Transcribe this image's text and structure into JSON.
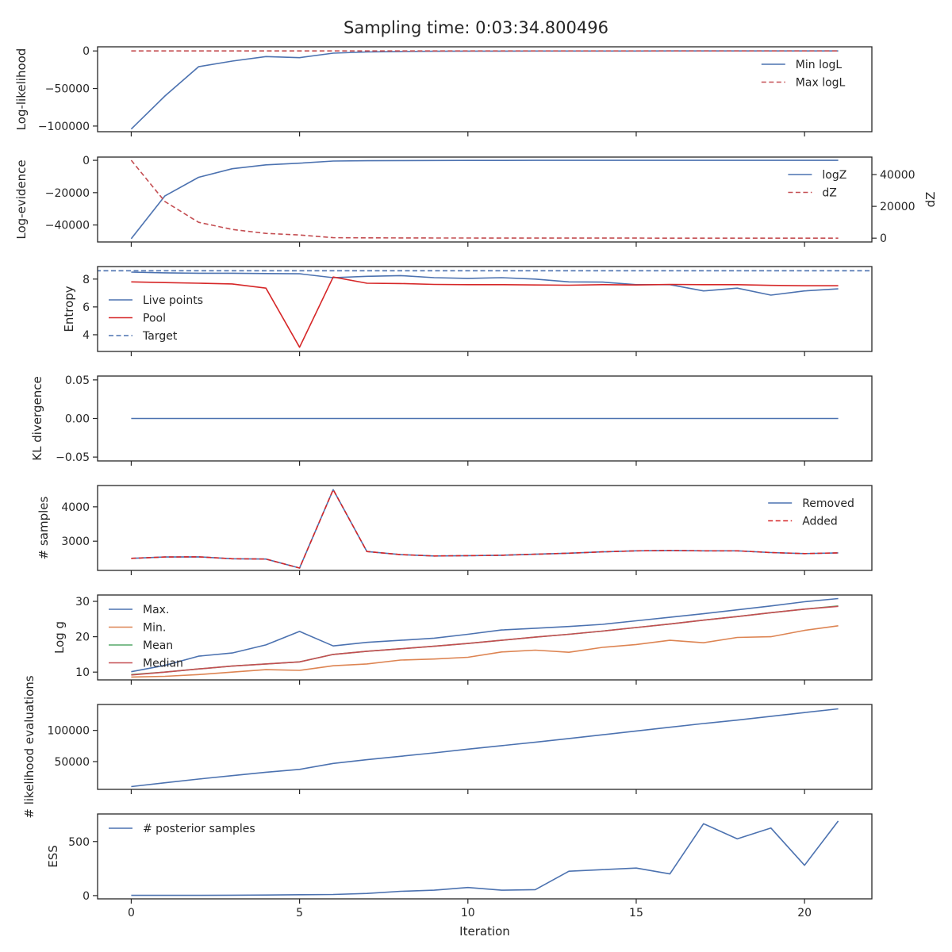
{
  "title": "Sampling time: 0:03:34.800496",
  "chart_data": [
    {
      "type": "line",
      "ylabel": "Log-likelihood",
      "ylim": [
        -107500,
        5500
      ],
      "yticks": [
        0,
        -50000,
        -100000
      ],
      "ytick_labels": [
        "0",
        "−50000",
        "−100000"
      ],
      "legend": "top-right",
      "series": [
        {
          "name": "Min logL",
          "color": "#4c72b0",
          "dash": "solid",
          "x": [
            0,
            1,
            2,
            3,
            4,
            5,
            6,
            7,
            8,
            9,
            10,
            11,
            12,
            13,
            14,
            15,
            16,
            17,
            18,
            19,
            20,
            21
          ],
          "y": [
            -104000,
            -60000,
            -21000,
            -13500,
            -7500,
            -9000,
            -3000,
            -1400,
            -700,
            -400,
            -250,
            -150,
            -100,
            -80,
            -60,
            -50,
            -40,
            -30,
            -20,
            -15,
            -10,
            -8
          ]
        },
        {
          "name": "Max logL",
          "color": "#c44e52",
          "dash": "dashed",
          "x": [
            0,
            1,
            2,
            3,
            4,
            5,
            6,
            7,
            8,
            9,
            10,
            11,
            12,
            13,
            14,
            15,
            16,
            17,
            18,
            19,
            20,
            21
          ],
          "y": [
            0,
            0,
            0,
            0,
            0,
            0,
            0,
            0,
            0,
            0,
            0,
            0,
            0,
            0,
            0,
            0,
            0,
            0,
            0,
            0,
            0,
            0
          ]
        }
      ]
    },
    {
      "type": "line",
      "ylabel": "Log-evidence",
      "ylabel_right": "dZ",
      "ylim": [
        -50500,
        2000
      ],
      "yticks": [
        0,
        -20000,
        -40000
      ],
      "ytick_labels": [
        "0",
        "−20000",
        "−40000"
      ],
      "ylim_right": [
        -2400,
        51000
      ],
      "yticks_right": [
        0,
        20000,
        40000
      ],
      "ytick_labels_right": [
        "0",
        "20000",
        "40000"
      ],
      "legend": "top-right",
      "series": [
        {
          "name": "logZ",
          "color": "#4c72b0",
          "dash": "solid",
          "axis": "left",
          "x": [
            0,
            1,
            2,
            3,
            4,
            5,
            6,
            7,
            8,
            9,
            10,
            11,
            12,
            13,
            14,
            15,
            16,
            17,
            18,
            19,
            20,
            21
          ],
          "y": [
            -48500,
            -22000,
            -10500,
            -5200,
            -2800,
            -1800,
            -450,
            -250,
            -150,
            -100,
            -60,
            -40,
            -30,
            -20,
            -15,
            -12,
            -10,
            -8,
            -6,
            -5,
            -4,
            -3
          ]
        },
        {
          "name": "dZ",
          "color": "#c44e52",
          "dash": "dashed",
          "axis": "right",
          "x": [
            0,
            1,
            2,
            3,
            4,
            5,
            6,
            7,
            8,
            9,
            10,
            11,
            12,
            13,
            14,
            15,
            16,
            17,
            18,
            19,
            20,
            21
          ],
          "y": [
            49000,
            23000,
            10000,
            5500,
            3000,
            2000,
            300,
            200,
            150,
            100,
            80,
            60,
            50,
            40,
            30,
            25,
            20,
            15,
            12,
            10,
            8,
            6
          ]
        }
      ]
    },
    {
      "type": "line",
      "ylabel": "Entropy",
      "ylim": [
        2.8,
        8.9
      ],
      "yticks": [
        8,
        6,
        4
      ],
      "ytick_labels": [
        "8",
        "6",
        "4"
      ],
      "legend": "bottom-left",
      "series": [
        {
          "name": "Live points",
          "color": "#4c72b0",
          "dash": "solid",
          "x": [
            0,
            1,
            2,
            3,
            4,
            5,
            6,
            7,
            8,
            9,
            10,
            11,
            12,
            13,
            14,
            15,
            16,
            17,
            18,
            19,
            20,
            21
          ],
          "y": [
            8.5,
            8.45,
            8.42,
            8.42,
            8.4,
            8.38,
            8.1,
            8.2,
            8.25,
            8.1,
            8.05,
            8.1,
            8.0,
            7.8,
            7.78,
            7.6,
            7.6,
            7.15,
            7.35,
            6.85,
            7.15,
            7.3
          ]
        },
        {
          "name": "Pool",
          "color": "#d62728",
          "dash": "solid",
          "x": [
            0,
            1,
            2,
            3,
            4,
            5,
            6,
            7,
            8,
            9,
            10,
            11,
            12,
            13,
            14,
            15,
            16,
            17,
            18,
            19,
            20,
            21
          ],
          "y": [
            7.8,
            7.75,
            7.7,
            7.65,
            7.35,
            3.1,
            8.15,
            7.7,
            7.68,
            7.62,
            7.6,
            7.6,
            7.58,
            7.56,
            7.6,
            7.58,
            7.62,
            7.6,
            7.6,
            7.55,
            7.52,
            7.52
          ]
        },
        {
          "name": "Target",
          "color": "#4c72b0",
          "dash": "dashed",
          "full_width": true,
          "x": [
            0,
            21
          ],
          "y": [
            8.6,
            8.6
          ]
        }
      ]
    },
    {
      "type": "line",
      "ylabel": "KL divergence",
      "ylim": [
        -0.055,
        0.055
      ],
      "yticks": [
        0.05,
        0.0,
        -0.05
      ],
      "ytick_labels": [
        "0.05",
        "0.00",
        "−0.05"
      ],
      "series": [
        {
          "name": "",
          "color": "#4c72b0",
          "dash": "solid",
          "x": [
            0,
            1,
            2,
            3,
            4,
            5,
            6,
            7,
            8,
            9,
            10,
            11,
            12,
            13,
            14,
            15,
            16,
            17,
            18,
            19,
            20,
            21
          ],
          "y": [
            0,
            0,
            0,
            0,
            0,
            0,
            0,
            0,
            0,
            0,
            0,
            0,
            0,
            0,
            0,
            0,
            0,
            0,
            0,
            0,
            0,
            0
          ]
        }
      ]
    },
    {
      "type": "line",
      "ylabel": "# samples",
      "ylim": [
        2150,
        4620
      ],
      "yticks": [
        4000,
        3000
      ],
      "ytick_labels": [
        "4000",
        "3000"
      ],
      "legend": "top-right",
      "series": [
        {
          "name": "Removed",
          "color": "#4c72b0",
          "dash": "solid",
          "x": [
            0,
            1,
            2,
            3,
            4,
            5,
            6,
            7,
            8,
            9,
            10,
            11,
            12,
            13,
            14,
            15,
            16,
            17,
            18,
            19,
            20,
            21
          ],
          "y": [
            2500,
            2540,
            2545,
            2490,
            2480,
            2220,
            4500,
            2700,
            2610,
            2570,
            2580,
            2590,
            2620,
            2650,
            2690,
            2720,
            2730,
            2720,
            2720,
            2670,
            2640,
            2660
          ]
        },
        {
          "name": "Added",
          "color": "#d62728",
          "dash": "dashed",
          "x": [
            0,
            1,
            2,
            3,
            4,
            5,
            6,
            7,
            8,
            9,
            10,
            11,
            12,
            13,
            14,
            15,
            16,
            17,
            18,
            19,
            20,
            21
          ],
          "y": [
            2500,
            2540,
            2545,
            2490,
            2480,
            2220,
            4500,
            2700,
            2610,
            2570,
            2580,
            2590,
            2620,
            2650,
            2690,
            2720,
            2730,
            2720,
            2720,
            2670,
            2640,
            2660
          ]
        }
      ]
    },
    {
      "type": "line",
      "ylabel": "Log g",
      "ylim": [
        7.8,
        31.8
      ],
      "yticks": [
        30,
        20,
        10
      ],
      "ytick_labels": [
        "30",
        "20",
        "10"
      ],
      "legend": "top-left",
      "series": [
        {
          "name": "Max.",
          "color": "#4c72b0",
          "dash": "solid",
          "x": [
            0,
            1,
            2,
            3,
            4,
            5,
            6,
            7,
            8,
            9,
            10,
            11,
            12,
            13,
            14,
            15,
            16,
            17,
            18,
            19,
            20,
            21
          ],
          "y": [
            10.1,
            11.9,
            14.5,
            15.4,
            17.7,
            21.5,
            17.4,
            18.4,
            19.0,
            19.6,
            20.7,
            21.9,
            22.4,
            22.9,
            23.5,
            24.5,
            25.5,
            26.5,
            27.6,
            28.7,
            29.9,
            30.8
          ]
        },
        {
          "name": "Min.",
          "color": "#dd8452",
          "dash": "solid",
          "x": [
            0,
            1,
            2,
            3,
            4,
            5,
            6,
            7,
            8,
            9,
            10,
            11,
            12,
            13,
            14,
            15,
            16,
            17,
            18,
            19,
            20,
            21
          ],
          "y": [
            8.6,
            8.8,
            9.3,
            10.0,
            10.7,
            10.5,
            11.8,
            12.3,
            13.4,
            13.7,
            14.2,
            15.7,
            16.2,
            15.6,
            17.0,
            17.8,
            19.0,
            18.3,
            19.8,
            20.0,
            21.8,
            23.1
          ]
        },
        {
          "name": "Mean",
          "color": "#55a868",
          "dash": "solid",
          "x": [
            0,
            1,
            2,
            3,
            4,
            5,
            6,
            7,
            8,
            9,
            10,
            11,
            12,
            13,
            14,
            15,
            16,
            17,
            18,
            19,
            20,
            21
          ],
          "y": [
            9.3,
            10.0,
            10.9,
            11.7,
            12.3,
            12.9,
            15.0,
            15.9,
            16.6,
            17.3,
            18.1,
            19.0,
            19.9,
            20.7,
            21.6,
            22.6,
            23.6,
            24.7,
            25.7,
            26.8,
            27.8,
            28.7
          ]
        },
        {
          "name": "Median",
          "color": "#c44e52",
          "dash": "solid",
          "x": [
            0,
            1,
            2,
            3,
            4,
            5,
            6,
            7,
            8,
            9,
            10,
            11,
            12,
            13,
            14,
            15,
            16,
            17,
            18,
            19,
            20,
            21
          ],
          "y": [
            9.2,
            10.0,
            10.9,
            11.7,
            12.3,
            12.9,
            15.0,
            15.9,
            16.6,
            17.3,
            18.1,
            19.0,
            19.9,
            20.7,
            21.6,
            22.6,
            23.6,
            24.7,
            25.7,
            26.8,
            27.8,
            28.6
          ]
        }
      ]
    },
    {
      "type": "line",
      "ylabel": "# likelihood evaluations",
      "ylim": [
        5500,
        141500
      ],
      "yticks": [
        100000,
        50000
      ],
      "ytick_labels": [
        "100000",
        "50000"
      ],
      "series": [
        {
          "name": "",
          "color": "#4c72b0",
          "dash": "solid",
          "x": [
            0,
            1,
            2,
            3,
            4,
            5,
            6,
            7,
            8,
            9,
            10,
            11,
            12,
            13,
            14,
            15,
            16,
            17,
            18,
            19,
            20,
            21
          ],
          "y": [
            10000,
            16000,
            22000,
            27500,
            33000,
            37500,
            47000,
            53000,
            58500,
            64000,
            70000,
            75500,
            81000,
            87000,
            93000,
            99000,
            105000,
            111000,
            116500,
            122500,
            128500,
            134500
          ]
        }
      ]
    },
    {
      "type": "line",
      "ylabel": "ESS",
      "xlabel": "Iteration",
      "ylim": [
        -30,
        755
      ],
      "yticks": [
        500,
        0
      ],
      "ytick_labels": [
        "500",
        "0"
      ],
      "xlim": [
        -1,
        22
      ],
      "xticks": [
        0,
        5,
        10,
        15,
        20
      ],
      "xtick_labels": [
        "0",
        "5",
        "10",
        "15",
        "20"
      ],
      "legend": "top-left",
      "series": [
        {
          "name": "# posterior samples",
          "color": "#4c72b0",
          "dash": "solid",
          "x": [
            0,
            1,
            2,
            3,
            4,
            5,
            6,
            7,
            8,
            9,
            10,
            11,
            12,
            13,
            14,
            15,
            16,
            17,
            18,
            19,
            20,
            21
          ],
          "y": [
            2,
            2,
            2,
            4,
            5,
            8,
            10,
            20,
            40,
            50,
            75,
            50,
            55,
            225,
            240,
            255,
            200,
            665,
            525,
            625,
            280,
            690
          ]
        }
      ]
    }
  ]
}
